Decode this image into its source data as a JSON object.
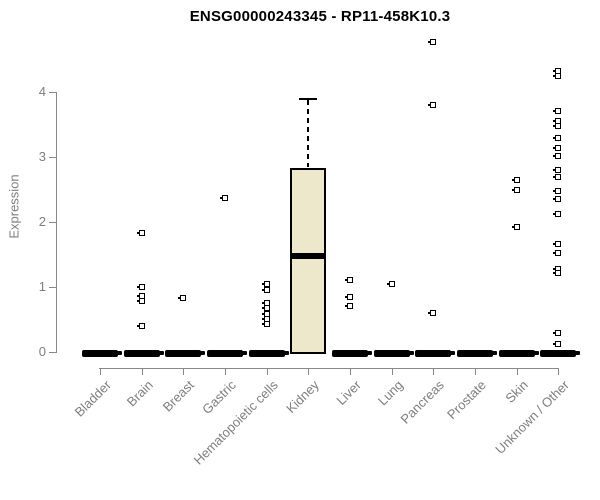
{
  "figure": {
    "title": "ENSG00000243345 - RP11-458K10.3"
  },
  "chart_data": {
    "type": "boxplot",
    "title": "ENSG00000243345 - RP11-458K10.3",
    "xlabel": "",
    "ylabel": "Expression",
    "ylim": [
      0,
      4.8
    ],
    "yticks": [
      0,
      1,
      2,
      3,
      4
    ],
    "grid": false,
    "legend": "none",
    "categories": [
      "Bladder",
      "Brain",
      "Breast",
      "Gastric",
      "Hematopoietic cells",
      "Kidney",
      "Liver",
      "Lung",
      "Pancreas",
      "Prostate",
      "Skin",
      "Unknown / Other"
    ],
    "boxes": [
      {
        "category": "Bladder",
        "whisker_low": 0,
        "q1": 0,
        "median": 0,
        "q3": 0,
        "whisker_high": 0,
        "outliers": []
      },
      {
        "category": "Brain",
        "whisker_low": 0,
        "q1": 0,
        "median": 0,
        "q3": 0,
        "whisker_high": 0,
        "outliers": [
          1.83,
          1.0,
          0.86,
          0.78,
          0.4
        ]
      },
      {
        "category": "Breast",
        "whisker_low": 0,
        "q1": 0,
        "median": 0,
        "q3": 0,
        "whisker_high": 0,
        "outliers": [
          0.83
        ]
      },
      {
        "category": "Gastric",
        "whisker_low": 0,
        "q1": 0,
        "median": 0,
        "q3": 0,
        "whisker_high": 0,
        "outliers": [
          2.37
        ]
      },
      {
        "category": "Hematopoietic cells",
        "whisker_low": 0,
        "q1": 0,
        "median": 0,
        "q3": 0,
        "whisker_high": 0,
        "outliers": [
          1.05,
          0.95,
          0.75,
          0.67,
          0.59,
          0.51,
          0.43
        ]
      },
      {
        "category": "Kidney",
        "whisker_low": 0,
        "q1": 0,
        "median": 1.47,
        "q3": 2.83,
        "whisker_high": 3.89,
        "outliers": []
      },
      {
        "category": "Liver",
        "whisker_low": 0,
        "q1": 0,
        "median": 0,
        "q3": 0,
        "whisker_high": 0,
        "outliers": [
          1.11,
          0.84,
          0.71
        ]
      },
      {
        "category": "Lung",
        "whisker_low": 0,
        "q1": 0,
        "median": 0,
        "q3": 0,
        "whisker_high": 0,
        "outliers": [
          1.05
        ]
      },
      {
        "category": "Pancreas",
        "whisker_low": 0,
        "q1": 0,
        "median": 0,
        "q3": 0,
        "whisker_high": 0,
        "outliers": [
          4.77,
          3.8,
          0.6
        ]
      },
      {
        "category": "Prostate",
        "whisker_low": 0,
        "q1": 0,
        "median": 0,
        "q3": 0,
        "whisker_high": 0,
        "outliers": []
      },
      {
        "category": "Skin",
        "whisker_low": 0,
        "q1": 0,
        "median": 0,
        "q3": 0,
        "whisker_high": 0,
        "outliers": [
          2.65,
          2.49,
          1.93
        ]
      },
      {
        "category": "Unknown / Other",
        "whisker_low": 0,
        "q1": 0,
        "median": 0,
        "q3": 0,
        "whisker_high": 0,
        "outliers": [
          4.33,
          4.25,
          3.71,
          3.55,
          3.48,
          3.29,
          3.14,
          3.02,
          2.8,
          2.69,
          2.47,
          2.36,
          2.13,
          1.66,
          1.53,
          1.28,
          1.22,
          0.3,
          0.13
        ]
      }
    ],
    "colors": {
      "box_fill": "#EDE8CC",
      "box_border": "#000000",
      "axis": "#888888",
      "tick_label": "#7E7E7E",
      "title": "#000000"
    }
  }
}
